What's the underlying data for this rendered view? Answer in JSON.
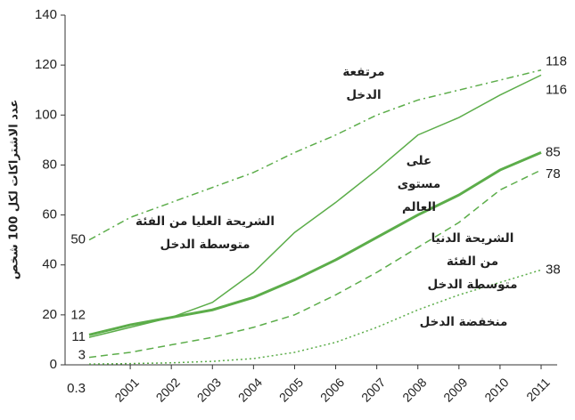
{
  "chart_data": {
    "type": "line",
    "y_label": "عدد الاشتراكات لكل 100 شخص",
    "categories": [
      null,
      "2001",
      "2002",
      "2003",
      "2004",
      "2005",
      "2006",
      "2007",
      "2008",
      "2009",
      "2010",
      "2011"
    ],
    "ylim": [
      0,
      140
    ],
    "yticks": [
      0,
      20,
      40,
      60,
      80,
      100,
      120,
      140
    ],
    "series": [
      {
        "name": "مرتفعة الدخل",
        "color": "#5cad4a",
        "line_style": "dash-dot",
        "values": [
          50,
          59,
          65,
          71,
          77,
          85,
          92,
          100,
          106,
          110,
          114,
          118
        ]
      },
      {
        "name": "الشريحة العليا من الفئة متوسطة الدخل",
        "color": "#5cad4a",
        "line_style": "solid",
        "values": [
          11,
          15,
          19,
          25,
          37,
          53,
          65,
          78,
          92,
          99,
          108,
          116
        ]
      },
      {
        "name": "على مستوى العالم",
        "color": "#5cad4a",
        "line_style": "thick",
        "values": [
          12,
          16,
          19,
          22,
          27,
          34,
          42,
          51,
          60,
          68,
          78,
          85
        ]
      },
      {
        "name": "الشريحة الدنيا من الفئة متوسطة الدخل",
        "color": "#5cad4a",
        "line_style": "dashed",
        "values": [
          3,
          5,
          8,
          11,
          15,
          20,
          28,
          37,
          47,
          57,
          70,
          78
        ]
      },
      {
        "name": "منخفضة الدخل",
        "color": "#5cad4a",
        "line_style": "dotted",
        "values": [
          0.3,
          0.5,
          0.8,
          1.4,
          2.5,
          5,
          9,
          15,
          22,
          28,
          33,
          38
        ]
      }
    ]
  }
}
